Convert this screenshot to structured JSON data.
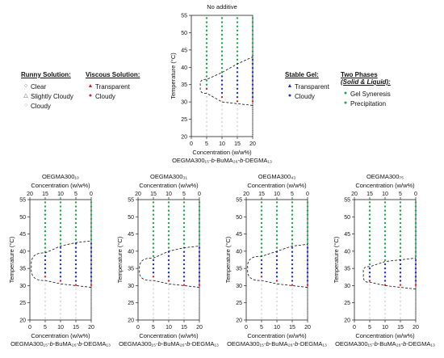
{
  "legend": {
    "runny": {
      "title": "Runny Solution:",
      "items": [
        {
          "label": "Clear",
          "symbol": "○",
          "color": "#555555"
        },
        {
          "label": "Slightly Cloudy",
          "symbol": "△",
          "color": "#555555"
        },
        {
          "label": "Cloudy",
          "symbol": "○",
          "color": "#999999"
        }
      ]
    },
    "viscous": {
      "title": "Viscous Solution:",
      "items": [
        {
          "label": "Transparent",
          "symbol": "▲",
          "color": "#e02020"
        },
        {
          "label": "Cloudy",
          "symbol": "●",
          "color": "#e02020"
        }
      ]
    },
    "gel": {
      "title": "Stable Gel:",
      "items": [
        {
          "label": "Transparent",
          "symbol": "▲",
          "color": "#1c2fcf"
        },
        {
          "label": "Cloudy",
          "symbol": "●",
          "color": "#1c2fcf"
        }
      ]
    },
    "two": {
      "title": "Two Phases",
      "subtitle": "(Solid & Liquid):",
      "items": [
        {
          "label": "Gel Syneresis",
          "symbol": "●",
          "color": "#1aa84a"
        },
        {
          "label": "Precipitation",
          "symbol": "●",
          "color": "#1aa84a"
        }
      ]
    }
  },
  "colors": {
    "clear": "#c8c8c8",
    "viscous": "#e02020",
    "gel": "#1c2fcf",
    "two_phase": "#1aa84a"
  },
  "chart_data": [
    {
      "type": "scatter",
      "title": "No additive",
      "xlabel": "Concentration (w/w%)",
      "ylabel": "Temperature (°C)",
      "bottom_label": "OEGMA300₁₅-b-BuMA₂₆-b-DEGMA₁₃",
      "top_axis": false,
      "xticks": [
        0,
        5,
        10,
        15,
        20
      ],
      "top_ticks": [],
      "yticks": [
        20,
        25,
        30,
        35,
        40,
        45,
        50,
        55
      ],
      "xlim": [
        0,
        20
      ],
      "ylim": [
        20,
        55
      ],
      "concentrations": [
        5,
        10,
        15,
        20
      ],
      "viscous_temp": [
        33,
        31,
        30,
        29
      ],
      "gel_upper": [
        35,
        37.5,
        40,
        42.5
      ],
      "boundary": {
        "lower": [
          [
            5,
            32.5
          ],
          [
            10,
            30
          ],
          [
            15,
            29.5
          ],
          [
            20,
            29
          ]
        ],
        "upper": [
          [
            20,
            43
          ],
          [
            15,
            41
          ],
          [
            10,
            38.5
          ],
          [
            5,
            36.5
          ]
        ],
        "nose_temp": 34.5,
        "nose_conc": 3
      }
    },
    {
      "type": "scatter",
      "title": "OEGMA300₁₀",
      "xlabel": "Concentration (w/w%)",
      "ylabel": "Temperature (°C)",
      "bottom_label": "OEGMA300₁₅-b-BuMA₂₆-b-DEGMA₁₃",
      "top_axis": true,
      "xticks": [
        0,
        5,
        10,
        15,
        20
      ],
      "top_ticks": [
        "20",
        "15",
        "10",
        "5",
        "0"
      ],
      "yticks": [
        20,
        25,
        30,
        35,
        40,
        45,
        50,
        55
      ],
      "xlim": [
        0,
        20
      ],
      "ylim": [
        20,
        55
      ],
      "concentrations": [
        5,
        10,
        15,
        20
      ],
      "viscous_temp": [
        31.5,
        30.5,
        30,
        29.5
      ],
      "gel_upper": [
        39.5,
        41.5,
        42.5,
        43
      ],
      "boundary": {
        "lower": [
          [
            5,
            31.5
          ],
          [
            10,
            30.5
          ],
          [
            15,
            30
          ],
          [
            20,
            29.5
          ]
        ],
        "upper": [
          [
            20,
            43
          ],
          [
            15,
            42.5
          ],
          [
            10,
            41.5
          ],
          [
            5,
            39.5
          ]
        ],
        "nose_temp": 35.5,
        "nose_conc": 0.5
      }
    },
    {
      "type": "scatter",
      "title": "OEGMA300₃₁",
      "xlabel": "Concentration (w/w%)",
      "ylabel": "Temperature (°C)",
      "bottom_label": "OEGMA300₁₅-b-BuMA₂₆-b-DEGMA₁₃",
      "top_axis": true,
      "xticks": [
        0,
        5,
        10,
        15,
        20
      ],
      "top_ticks": [
        "20",
        "15",
        "10",
        "5",
        "0"
      ],
      "yticks": [
        20,
        25,
        30,
        35,
        40,
        45,
        50,
        55
      ],
      "xlim": [
        0,
        20
      ],
      "ylim": [
        20,
        55
      ],
      "concentrations": [
        5,
        10,
        15,
        20
      ],
      "viscous_temp": [
        31.5,
        30.5,
        30,
        29.5
      ],
      "gel_upper": [
        38,
        40,
        41,
        41.5
      ],
      "boundary": {
        "lower": [
          [
            5,
            31.5
          ],
          [
            10,
            30.5
          ],
          [
            15,
            30
          ],
          [
            20,
            29.5
          ]
        ],
        "upper": [
          [
            20,
            41.5
          ],
          [
            15,
            41
          ],
          [
            10,
            40
          ],
          [
            5,
            38
          ]
        ],
        "nose_temp": 34.5,
        "nose_conc": 0.5
      }
    },
    {
      "type": "scatter",
      "title": "OEGMA300₄₃",
      "xlabel": "Concentration (w/w%)",
      "ylabel": "Temperature (°C)",
      "bottom_label": "OEGMA300₁₅-b-BuMA₂₆-b-DEGMA₁₃",
      "top_axis": true,
      "xticks": [
        0,
        5,
        10,
        15,
        20
      ],
      "top_ticks": [
        "20",
        "15",
        "10",
        "5",
        "0"
      ],
      "yticks": [
        20,
        25,
        30,
        35,
        40,
        45,
        50,
        55
      ],
      "xlim": [
        0,
        20
      ],
      "ylim": [
        20,
        55
      ],
      "concentrations": [
        5,
        10,
        15,
        20
      ],
      "viscous_temp": [
        31.5,
        30.5,
        30,
        29.5
      ],
      "gel_upper": [
        38.5,
        40,
        41.5,
        42
      ],
      "boundary": {
        "lower": [
          [
            5,
            31.5
          ],
          [
            10,
            30.5
          ],
          [
            15,
            30
          ],
          [
            20,
            29.5
          ]
        ],
        "upper": [
          [
            20,
            42
          ],
          [
            15,
            41.5
          ],
          [
            10,
            40
          ],
          [
            5,
            38.5
          ]
        ],
        "nose_temp": 35,
        "nose_conc": 0.5
      }
    },
    {
      "type": "scatter",
      "title": "OEGMA300₇₅",
      "xlabel": "Concentration (w/w%)",
      "ylabel": "Temperature (°C)",
      "bottom_label": "OEGMA300₁₅-b-BuMA₂₆-b-DEGMA₁₃",
      "top_axis": true,
      "xticks": [
        0,
        5,
        10,
        15,
        20
      ],
      "top_ticks": [
        "20",
        "15",
        "10",
        "5",
        "0"
      ],
      "yticks": [
        20,
        25,
        30,
        35,
        40,
        45,
        50,
        55
      ],
      "xlim": [
        0,
        20
      ],
      "ylim": [
        20,
        55
      ],
      "concentrations": [
        5,
        10,
        15,
        20
      ],
      "viscous_temp": [
        31,
        30,
        29.5,
        29
      ],
      "gel_upper": [
        35.5,
        37,
        37.5,
        38
      ],
      "boundary": {
        "lower": [
          [
            5,
            31
          ],
          [
            10,
            30
          ],
          [
            15,
            29.5
          ],
          [
            20,
            29
          ]
        ],
        "upper": [
          [
            20,
            38
          ],
          [
            15,
            37.5
          ],
          [
            10,
            37
          ],
          [
            5,
            35.5
          ]
        ],
        "nose_temp": 33.5,
        "nose_conc": 3
      }
    }
  ]
}
